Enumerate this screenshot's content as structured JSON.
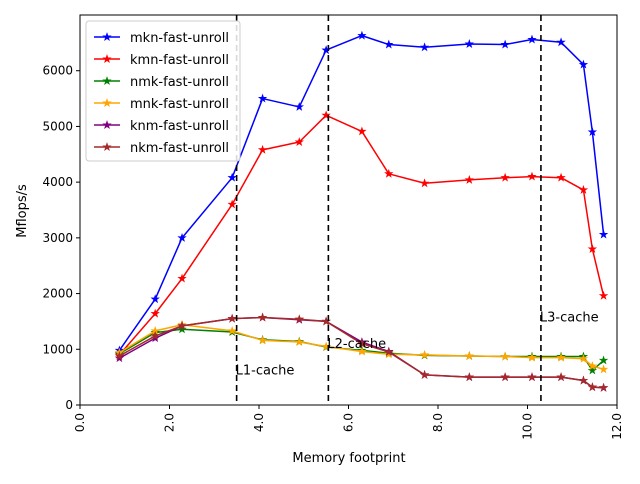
{
  "chart_data": {
    "type": "line",
    "title": "",
    "xlabel": "Memory footprint",
    "ylabel": "Mflops/s",
    "xlim": [
      0,
      12
    ],
    "ylim": [
      0,
      7000
    ],
    "x_ticks": [
      0,
      2,
      4,
      6,
      8,
      10,
      12
    ],
    "x_tick_labels": [
      "0.0",
      "2.0",
      "4.0",
      "6.0",
      "8.0",
      "10.0",
      "12.0"
    ],
    "y_ticks": [
      0,
      1000,
      2000,
      3000,
      4000,
      5000,
      6000
    ],
    "y_tick_labels": [
      "0",
      "1000",
      "2000",
      "3000",
      "4000",
      "5000",
      "6000"
    ],
    "grid": false,
    "legend_position": "top-left",
    "x": [
      0.88,
      1.68,
      2.28,
      3.4,
      4.08,
      4.9,
      5.5,
      6.3,
      6.9,
      7.7,
      8.7,
      9.5,
      10.1,
      10.75,
      11.25,
      11.45,
      11.7
    ],
    "series": [
      {
        "name": "mkn-fast-unroll",
        "color": "#0000ff",
        "marker": "star",
        "values": [
          980,
          1900,
          3000,
          4080,
          5500,
          5350,
          6370,
          6630,
          6470,
          6420,
          6480,
          6470,
          6560,
          6510,
          6110,
          4900,
          3060
        ]
      },
      {
        "name": "kmn-fast-unroll",
        "color": "#ff0000",
        "marker": "star",
        "values": [
          900,
          1640,
          2270,
          3600,
          4580,
          4720,
          5200,
          4910,
          4150,
          3980,
          4040,
          4080,
          4100,
          4080,
          3860,
          2800,
          1960
        ]
      },
      {
        "name": "nmk-fast-unroll",
        "color": "#008000",
        "marker": "star",
        "values": [
          920,
          1300,
          1360,
          1310,
          1170,
          1140,
          1040,
          980,
          930,
          890,
          880,
          870,
          870,
          870,
          870,
          620,
          800
        ]
      },
      {
        "name": "mnk-fast-unroll",
        "color": "#ffa500",
        "marker": "star",
        "values": [
          940,
          1330,
          1440,
          1330,
          1160,
          1130,
          1050,
          960,
          910,
          900,
          880,
          870,
          850,
          850,
          830,
          700,
          640
        ]
      },
      {
        "name": "knm-fast-unroll",
        "color": "#800080",
        "marker": "star",
        "values": [
          840,
          1200,
          1420,
          1550,
          1570,
          1530,
          1500,
          1130,
          960,
          540,
          500,
          500,
          500,
          500,
          440,
          320,
          310
        ]
      },
      {
        "name": "nkm-fast-unroll",
        "color": "#a52a2a",
        "marker": "star",
        "values": [
          880,
          1240,
          1420,
          1550,
          1570,
          1540,
          1500,
          1100,
          950,
          540,
          500,
          500,
          500,
          500,
          440,
          320,
          310
        ]
      }
    ],
    "cache_lines": [
      {
        "label": "L1-cache",
        "x": 3.5,
        "label_y": 550
      },
      {
        "label": "L2-cache",
        "x": 5.55,
        "label_y": 1020
      },
      {
        "label": "L3-cache",
        "x": 10.3,
        "label_y": 1500
      }
    ]
  }
}
